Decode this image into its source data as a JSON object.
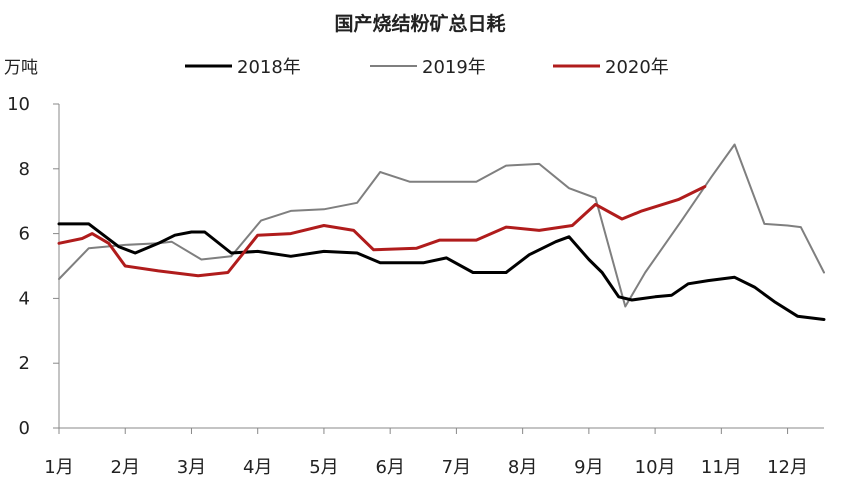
{
  "chart_data": {
    "type": "line",
    "title": "国产烧结粉矿总日耗",
    "ylabel": "万吨",
    "xlabel": "",
    "ylim": [
      0,
      10
    ],
    "yticks": [
      0,
      2,
      4,
      6,
      8,
      10
    ],
    "xlim": [
      0,
      11.55
    ],
    "x_ticks": [
      {
        "x": 0,
        "label": "1月"
      },
      {
        "x": 1,
        "label": "2月"
      },
      {
        "x": 2,
        "label": "3月"
      },
      {
        "x": 3,
        "label": "4月"
      },
      {
        "x": 4,
        "label": "5月"
      },
      {
        "x": 5,
        "label": "6月"
      },
      {
        "x": 6,
        "label": "7月"
      },
      {
        "x": 7,
        "label": "8月"
      },
      {
        "x": 8,
        "label": "9月"
      },
      {
        "x": 9,
        "label": "10月"
      },
      {
        "x": 10,
        "label": "11月"
      },
      {
        "x": 11,
        "label": "12月"
      }
    ],
    "grid": false,
    "legend_position": "top",
    "series": [
      {
        "name": "2018年",
        "color": "#000000",
        "points": [
          [
            0,
            6.3
          ],
          [
            0.45,
            6.3
          ],
          [
            0.9,
            5.6
          ],
          [
            1.15,
            5.4
          ],
          [
            1.5,
            5.7
          ],
          [
            1.75,
            5.95
          ],
          [
            2.0,
            6.05
          ],
          [
            2.2,
            6.05
          ],
          [
            2.6,
            5.4
          ],
          [
            3.0,
            5.45
          ],
          [
            3.5,
            5.3
          ],
          [
            4.0,
            5.45
          ],
          [
            4.5,
            5.4
          ],
          [
            4.85,
            5.1
          ],
          [
            5.5,
            5.1
          ],
          [
            5.85,
            5.25
          ],
          [
            6.25,
            4.8
          ],
          [
            6.75,
            4.8
          ],
          [
            7.1,
            5.35
          ],
          [
            7.5,
            5.75
          ],
          [
            7.7,
            5.9
          ],
          [
            8.0,
            5.2
          ],
          [
            8.2,
            4.8
          ],
          [
            8.45,
            4.05
          ],
          [
            8.65,
            3.95
          ],
          [
            9.0,
            4.05
          ],
          [
            9.25,
            4.1
          ],
          [
            9.5,
            4.45
          ],
          [
            9.8,
            4.55
          ],
          [
            10.2,
            4.65
          ],
          [
            10.5,
            4.35
          ],
          [
            10.8,
            3.9
          ],
          [
            11.15,
            3.45
          ],
          [
            11.55,
            3.35
          ]
        ]
      },
      {
        "name": "2019年",
        "color": "#7f7f7f",
        "points": [
          [
            0,
            4.6
          ],
          [
            0.45,
            5.55
          ],
          [
            1.0,
            5.65
          ],
          [
            1.5,
            5.7
          ],
          [
            1.7,
            5.75
          ],
          [
            2.15,
            5.2
          ],
          [
            2.6,
            5.3
          ],
          [
            3.05,
            6.4
          ],
          [
            3.5,
            6.7
          ],
          [
            4.0,
            6.75
          ],
          [
            4.5,
            6.95
          ],
          [
            4.85,
            7.9
          ],
          [
            5.3,
            7.6
          ],
          [
            5.8,
            7.6
          ],
          [
            6.3,
            7.6
          ],
          [
            6.75,
            8.1
          ],
          [
            7.25,
            8.15
          ],
          [
            7.7,
            7.4
          ],
          [
            8.1,
            7.1
          ],
          [
            8.55,
            3.75
          ],
          [
            8.85,
            4.8
          ],
          [
            9.4,
            6.4
          ],
          [
            9.85,
            7.75
          ],
          [
            10.2,
            8.75
          ],
          [
            10.65,
            6.3
          ],
          [
            11.0,
            6.25
          ],
          [
            11.2,
            6.2
          ],
          [
            11.55,
            4.8
          ]
        ]
      },
      {
        "name": "2020年",
        "color": "#b01c1c",
        "points": [
          [
            0,
            5.7
          ],
          [
            0.35,
            5.85
          ],
          [
            0.5,
            6.0
          ],
          [
            0.75,
            5.7
          ],
          [
            1.0,
            5.0
          ],
          [
            1.5,
            4.85
          ],
          [
            2.1,
            4.7
          ],
          [
            2.55,
            4.8
          ],
          [
            3.0,
            5.95
          ],
          [
            3.5,
            6.0
          ],
          [
            4.0,
            6.25
          ],
          [
            4.45,
            6.1
          ],
          [
            4.75,
            5.5
          ],
          [
            5.4,
            5.55
          ],
          [
            5.75,
            5.8
          ],
          [
            6.3,
            5.8
          ],
          [
            6.75,
            6.2
          ],
          [
            7.25,
            6.1
          ],
          [
            7.75,
            6.25
          ],
          [
            8.1,
            6.9
          ],
          [
            8.5,
            6.45
          ],
          [
            8.8,
            6.7
          ],
          [
            9.35,
            7.05
          ],
          [
            9.75,
            7.45
          ]
        ]
      }
    ]
  }
}
